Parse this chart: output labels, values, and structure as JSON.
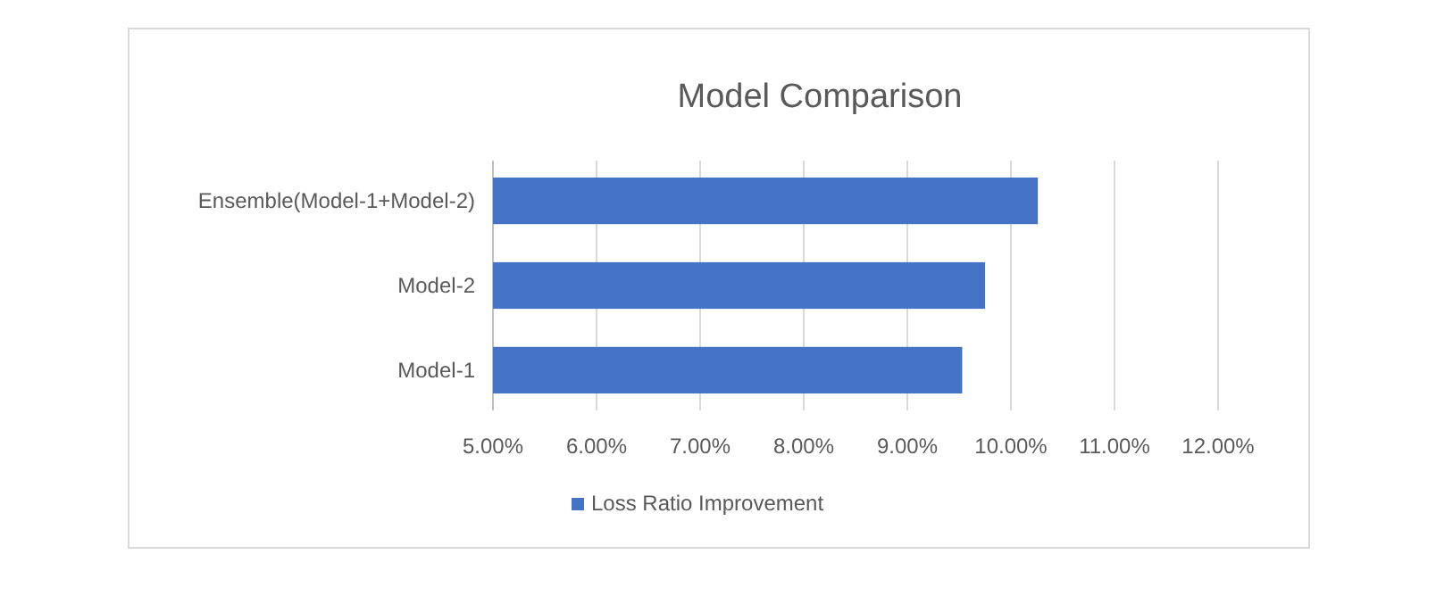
{
  "chart_data": {
    "type": "bar",
    "orientation": "horizontal",
    "title": "Model Comparison",
    "categories": [
      "Ensemble(Model-1+Model-2)",
      "Model-2",
      "Model-1"
    ],
    "series": [
      {
        "name": "Loss Ratio Improvement",
        "color": "#4472c4",
        "values": [
          10.26,
          9.75,
          9.53
        ]
      }
    ],
    "xlim": [
      5,
      12
    ],
    "xticks": [
      {
        "value": 5,
        "label": "5.00%"
      },
      {
        "value": 6,
        "label": "6.00%"
      },
      {
        "value": 7,
        "label": "7.00%"
      },
      {
        "value": 8,
        "label": "8.00%"
      },
      {
        "value": 9,
        "label": "9.00%"
      },
      {
        "value": 10,
        "label": "10.00%"
      },
      {
        "value": 11,
        "label": "11.00%"
      },
      {
        "value": 12,
        "label": "12.00%"
      }
    ],
    "grid": "x",
    "legend": "bottom"
  }
}
